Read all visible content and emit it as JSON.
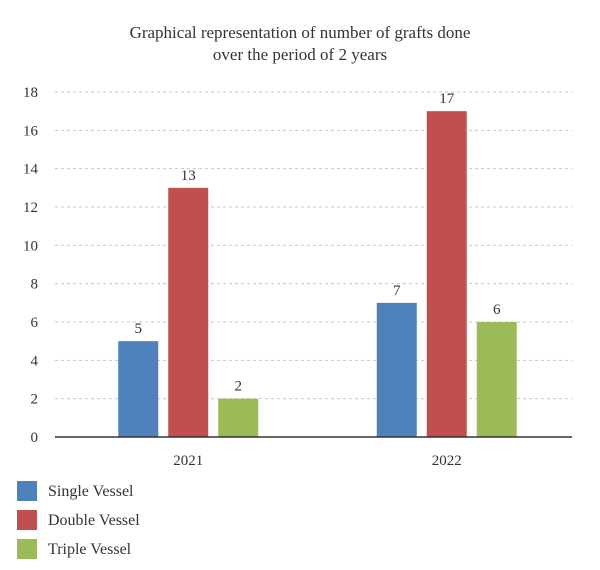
{
  "chart_data": {
    "type": "bar",
    "title_lines": [
      "Graphical representation of number of grafts done",
      "over the period of 2 years"
    ],
    "categories": [
      "2021",
      "2022"
    ],
    "series": [
      {
        "name": "Single Vessel",
        "color": "#4f81bd",
        "values": [
          5,
          7
        ]
      },
      {
        "name": "Double Vessel",
        "color": "#c0504d",
        "values": [
          13,
          17
        ]
      },
      {
        "name": "Triple Vessel",
        "color": "#9bbb59",
        "values": [
          2,
          6
        ]
      }
    ],
    "ylim": [
      0,
      18
    ],
    "yticks": [
      0,
      2,
      4,
      6,
      8,
      10,
      12,
      14,
      16,
      18
    ],
    "grid": true,
    "legend_position": "bottom-left",
    "data_labels": true
  }
}
